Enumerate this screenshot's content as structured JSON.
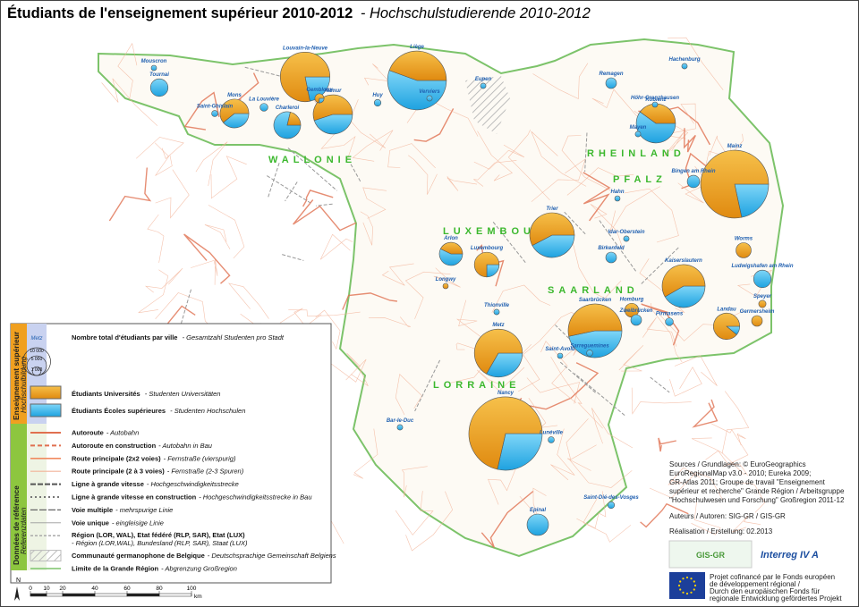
{
  "header": {
    "title_fr": "Étudiants de l'enseignement supérieur 2010-2012",
    "title_de": "- Hochschulstudierende 2010-2012"
  },
  "regions": [
    "WALLONIE",
    "LUXEMBOURG",
    "RHEINLAND",
    "PFALZ",
    "SAARLAND",
    "LORRAINE"
  ],
  "cities": [
    {
      "name": "Liège",
      "universites": 20000,
      "ecoles": 25000
    },
    {
      "name": "Louvain-la-Neuve",
      "universites": 25000,
      "ecoles": 7000
    },
    {
      "name": "Namur",
      "universites": 11000,
      "ecoles": 9000
    },
    {
      "name": "Mons",
      "universites": 6500,
      "ecoles": 4200
    },
    {
      "name": "Charleroi",
      "universites": 2000,
      "ecoles": 7400
    },
    {
      "name": "Tournai",
      "universites": 0,
      "ecoles": 4000
    },
    {
      "name": "Mouscron",
      "universites": 0,
      "ecoles": 300
    },
    {
      "name": "Gembloux",
      "universites": 800,
      "ecoles": 300
    },
    {
      "name": "Huy",
      "universites": 0,
      "ecoles": 600
    },
    {
      "name": "Verviers",
      "universites": 0,
      "ecoles": 400
    },
    {
      "name": "Eupen",
      "universites": 0,
      "ecoles": 400
    },
    {
      "name": "La Louvière",
      "universites": 0,
      "ecoles": 800
    },
    {
      "name": "Saint-Ghislain",
      "universites": 0,
      "ecoles": 500
    },
    {
      "name": "Luxembourg",
      "universites": 6000,
      "ecoles": 2000
    },
    {
      "name": "Arlon",
      "universites": 3000,
      "ecoles": 4000
    },
    {
      "name": "Longwy",
      "universites": 300,
      "ecoles": 0
    },
    {
      "name": "Thionville",
      "universites": 0,
      "ecoles": 400
    },
    {
      "name": "Metz",
      "universites": 20000,
      "ecoles": 10000
    },
    {
      "name": "Saint-Avold",
      "universites": 0,
      "ecoles": 300
    },
    {
      "name": "Saarbrücken",
      "universites": 20000,
      "ecoles": 17500
    },
    {
      "name": "Sarreguemines",
      "universites": 0,
      "ecoles": 500
    },
    {
      "name": "Homburg",
      "universites": 2500,
      "ecoles": 0
    },
    {
      "name": "Zweibrücken",
      "universites": 0,
      "ecoles": 1500
    },
    {
      "name": "Pirmasens",
      "universites": 0,
      "ecoles": 800
    },
    {
      "name": "Kaiserslautern",
      "universites": 14000,
      "ecoles": 10000
    },
    {
      "name": "Landau",
      "universites": 8000,
      "ecoles": 1000
    },
    {
      "name": "Germersheim",
      "universites": 1500,
      "ecoles": 0
    },
    {
      "name": "Speyer",
      "universites": 700,
      "ecoles": 0
    },
    {
      "name": "Worms",
      "universites": 3000,
      "ecoles": 0
    },
    {
      "name": "Ludwigshafen am Rhein",
      "universites": 0,
      "ecoles": 4000
    },
    {
      "name": "Mainz",
      "universites": 47000,
      "ecoles": 13000
    },
    {
      "name": "Bingen am Rhein",
      "universites": 0,
      "ecoles": 2000
    },
    {
      "name": "Koblenz",
      "universites": 8000,
      "ecoles": 12000
    },
    {
      "name": "Remagen",
      "universites": 0,
      "ecoles": 1500
    },
    {
      "name": "Hachenburg",
      "universites": 0,
      "ecoles": 400
    },
    {
      "name": "Höhr-Grenzhausen",
      "universites": 0,
      "ecoles": 300
    },
    {
      "name": "Mayen",
      "universites": 0,
      "ecoles": 400
    },
    {
      "name": "Hahn",
      "universites": 0,
      "ecoles": 300
    },
    {
      "name": "Idar-Oberstein",
      "universites": 0,
      "ecoles": 400
    },
    {
      "name": "Birkenfeld",
      "universites": 0,
      "ecoles": 1500
    },
    {
      "name": "Trier",
      "universites": 15000,
      "ecoles": 11000
    },
    {
      "name": "Nancy",
      "universites": 50000,
      "ecoles": 20000
    },
    {
      "name": "Lunéville",
      "universites": 0,
      "ecoles": 500
    },
    {
      "name": "Bar-le-Duc",
      "universites": 0,
      "ecoles": 400
    },
    {
      "name": "Saint-Dié-des-Vosges",
      "universites": 0,
      "ecoles": 600
    },
    {
      "name": "Epinal",
      "universites": 0,
      "ecoles": 6000
    }
  ],
  "legend": {
    "section1_fr": "Enseignement supérieur",
    "section1_de": "Hochschulbildung",
    "section2_fr": "Données de référence",
    "section2_de": "Referenzdaten",
    "sample_city": "Metz",
    "size_circles": [
      {
        "value": 10000,
        "label": "10 000"
      },
      {
        "value": 5000,
        "label": "5 000"
      },
      {
        "value": 1000,
        "label": "1 000"
      }
    ],
    "total_fr": "Nombre total d'étudiants par ville",
    "total_de": "- Gesamtzahl Studenten pro Stadt",
    "universites_fr": "Étudiants Universités",
    "universites_de": "- Studenten Universitäten",
    "ecoles_fr": "Étudiants Écoles supérieures",
    "ecoles_de": "- Studenten Hochschulen",
    "reference": [
      {
        "fr": "Autoroute",
        "de": "- Autobahn"
      },
      {
        "fr": "Autoroute en construction",
        "de": "- Autobahn in Bau"
      },
      {
        "fr": "Route principale (2x2 voies)",
        "de": "- Fernstraße (vierspurig)"
      },
      {
        "fr": "Route principale (2 à 3 voies)",
        "de": "- Fernstraße (2-3 Spuren)"
      },
      {
        "fr": "Ligne à grande vitesse",
        "de": "- Hochgeschwindigkeitsstrecke"
      },
      {
        "fr": "Ligne à grande vitesse en construction",
        "de": "- Hochgeschwindigkeitsstrecke in Bau"
      },
      {
        "fr": "Voie multiple",
        "de": "- mehrspurige Linie"
      },
      {
        "fr": "Voie unique",
        "de": "- eingleisige Linie"
      },
      {
        "fr": "Région (LOR, WAL), Etat fédéré (RLP, SAR), Etat (LUX)",
        "de": "- Région (LOR,WAL), Bundesland (RLP, SAR), Staat (LUX)"
      },
      {
        "fr": "Communauté germanophone de Belgique",
        "de": "- Deutschsprachige Gemeinschaft Belgiens"
      },
      {
        "fr": "Limite de la Grande Région",
        "de": "- Abgrenzung Großregion"
      }
    ]
  },
  "scale": {
    "north": "N",
    "ticks": [
      0,
      10,
      20,
      40,
      60,
      80,
      100
    ],
    "unit": "km"
  },
  "sources": [
    "Sources / Grundlagen: © EuroGeographics",
    "EuroRegionalMap v3.0 - 2010; Eureka 2009;",
    "GR-Atlas 2011; Groupe de travail \"Enseignement",
    "supérieur et recherche\" Grande Région / Arbeitsgruppe",
    "\"Hochschulwesen und Forschung\" Großregion 2011-12"
  ],
  "authors": "Auteurs / Autoren: SIG-GR / GIS-GR",
  "realisation": "Réalisation / Erstellung: 02.2013",
  "logos": {
    "gis": "GIS-GR",
    "interreg": "Interreg IV A"
  },
  "funding": [
    "Projet cofinancé par le Fonds européen",
    "de développement régional /",
    "Durch den europäischen Fonds für",
    "regionale Entwicklung gefördertes Projekt"
  ]
}
